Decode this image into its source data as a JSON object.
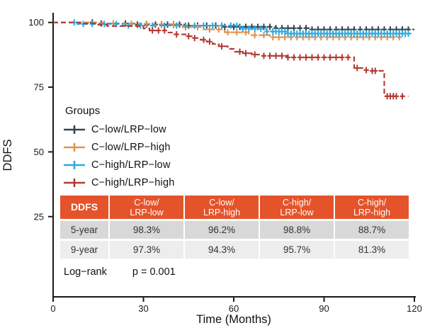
{
  "chart_data": {
    "type": "line",
    "subtype": "kaplan-meier-step",
    "title": "",
    "xlabel": "Time (Months)",
    "ylabel": "DDFS",
    "xlim": [
      0,
      120
    ],
    "xticks": [
      0,
      30,
      60,
      90,
      120
    ],
    "yticks": [
      100,
      75,
      50,
      25
    ],
    "grid": false,
    "legend_title": "Groups",
    "legend_position": "inside-left-middle",
    "series": [
      {
        "name": "C−low/LRP−low",
        "color": "#37474F",
        "end": 120,
        "steps": [
          [
            0,
            100
          ],
          [
            15,
            99.6
          ],
          [
            27,
            99.2
          ],
          [
            44,
            98.8
          ],
          [
            57,
            98.3
          ],
          [
            74,
            97.8
          ],
          [
            86,
            97.3
          ]
        ],
        "censors": [
          13,
          16,
          20,
          24,
          28,
          31,
          34,
          36,
          38,
          40,
          42,
          45,
          48,
          51,
          54,
          57,
          60,
          62,
          64,
          66,
          68,
          70,
          72,
          74,
          76,
          78,
          80,
          82,
          84,
          86,
          88,
          90,
          92,
          94,
          96,
          98,
          100,
          102,
          104,
          106,
          108,
          110,
          112,
          114,
          116,
          118
        ]
      },
      {
        "name": "C−low/LRP−high",
        "color": "#E0924E",
        "end": 117,
        "steps": [
          [
            0,
            100
          ],
          [
            18,
            99.5
          ],
          [
            33,
            99.0
          ],
          [
            43,
            98.2
          ],
          [
            50,
            97.3
          ],
          [
            57,
            96.2
          ],
          [
            65,
            95.1
          ],
          [
            72,
            94.3
          ]
        ],
        "censors": [
          20,
          26,
          31,
          36,
          40,
          44,
          48,
          52,
          55,
          58,
          61,
          64,
          67,
          70,
          73,
          75,
          77,
          79,
          81,
          83,
          85,
          87,
          89,
          91,
          93,
          95,
          97,
          99,
          101,
          103,
          105,
          107,
          109,
          111,
          113,
          115
        ]
      },
      {
        "name": "C−high/LRP−low",
        "color": "#2BA9E1",
        "end": 119,
        "steps": [
          [
            0,
            100
          ],
          [
            8,
            99.4
          ],
          [
            23,
            98.8
          ],
          [
            62,
            97.6
          ],
          [
            71,
            96.5
          ],
          [
            78,
            95.7
          ]
        ],
        "censors": [
          7,
          10,
          13,
          17,
          21,
          25,
          29,
          33,
          37,
          41,
          44,
          47,
          50,
          53,
          56,
          59,
          61,
          63,
          65,
          67,
          69,
          71,
          73,
          74,
          75,
          76,
          77,
          78,
          79,
          80,
          81,
          82,
          83,
          84,
          85,
          86,
          87,
          88,
          89,
          90,
          91,
          92,
          93,
          94,
          95,
          96,
          97,
          98,
          99,
          100,
          101,
          102,
          103,
          104,
          105,
          106,
          107,
          108,
          109,
          110,
          111,
          112,
          113,
          114,
          115,
          116,
          117,
          118
        ]
      },
      {
        "name": "C−high/LRP−high",
        "color": "#B13B33",
        "end": 118,
        "steps": [
          [
            0,
            100
          ],
          [
            9,
            99.6
          ],
          [
            14,
            99.1
          ],
          [
            18,
            98.6
          ],
          [
            30,
            97.7
          ],
          [
            32,
            96.9
          ],
          [
            38,
            96.1
          ],
          [
            40,
            95.4
          ],
          [
            44,
            94.7
          ],
          [
            46,
            94.0
          ],
          [
            49,
            93.3
          ],
          [
            51,
            92.6
          ],
          [
            53,
            91.7
          ],
          [
            55,
            90.8
          ],
          [
            58,
            89.8
          ],
          [
            60,
            88.7
          ],
          [
            63,
            88.1
          ],
          [
            66,
            87.6
          ],
          [
            69,
            87.1
          ],
          [
            78,
            86.5
          ],
          [
            100,
            82.4
          ],
          [
            103,
            81.6
          ],
          [
            105,
            81.3
          ],
          [
            110,
            71.5
          ]
        ],
        "censors": [
          33,
          35,
          37,
          41,
          45,
          47,
          50,
          52,
          56,
          62,
          64,
          67,
          70,
          72,
          74,
          76,
          78,
          80,
          82,
          84,
          86,
          88,
          90,
          92,
          94,
          96,
          98,
          101,
          104,
          106,
          107,
          111,
          112,
          113,
          114,
          116
        ]
      }
    ],
    "annotations": {
      "logrank_label": "Log−rank",
      "p_value": "p = 0.001"
    }
  },
  "table": {
    "header_bg": "#E5532A",
    "row_bg": [
      "#D8D8D8",
      "#EDEDED"
    ],
    "header": [
      "DDFS",
      "C-low/\nLRP-low",
      "C-low/\nLRP-high",
      "C-high/\nLRP-low",
      "C-high/\nLRP-high"
    ],
    "rows": [
      [
        "5-year",
        "98.3%",
        "96.2%",
        "98.8%",
        "88.7%"
      ],
      [
        "9-year",
        "97.3%",
        "94.3%",
        "95.7%",
        "81.3%"
      ]
    ]
  }
}
